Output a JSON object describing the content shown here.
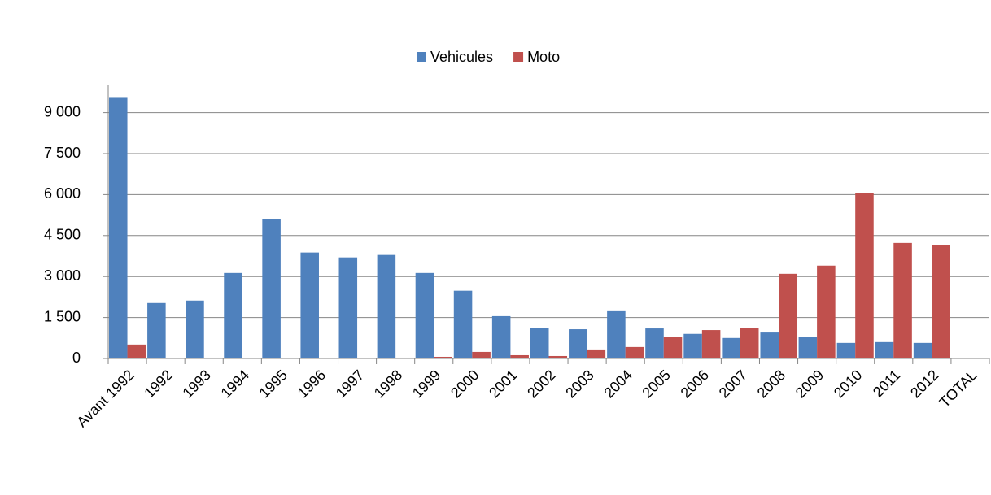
{
  "chart_data": {
    "type": "bar",
    "categories": [
      "Avant 1992",
      "1992",
      "1993",
      "1994",
      "1995",
      "1996",
      "1997",
      "1998",
      "1999",
      "2000",
      "2001",
      "2002",
      "2003",
      "2004",
      "2005",
      "2006",
      "2007",
      "2008",
      "2009",
      "2010",
      "2011",
      "2012",
      "TOTAL"
    ],
    "series": [
      {
        "name": "Vehicules",
        "color": "#4f81bd",
        "values": [
          9570,
          2030,
          2120,
          3130,
          5100,
          3880,
          3700,
          3790,
          3130,
          2480,
          1550,
          1130,
          1070,
          1730,
          1100,
          900,
          750,
          950,
          780,
          570,
          600,
          570,
          null
        ]
      },
      {
        "name": "Moto",
        "color": "#c0504d",
        "values": [
          510,
          0,
          30,
          0,
          0,
          0,
          0,
          30,
          60,
          240,
          120,
          90,
          330,
          420,
          800,
          1040,
          1130,
          3100,
          3400,
          6050,
          4230,
          4150,
          null
        ]
      }
    ],
    "ylim": [
      0,
      10000
    ],
    "yticks": [
      0,
      {
        "value": 1500,
        "label": "1 500"
      },
      {
        "value": 3000,
        "label": "3 000"
      },
      {
        "value": 4500,
        "label": "4 500"
      },
      {
        "value": 6000,
        "label": "6 000"
      },
      {
        "value": 7500,
        "label": "7 500"
      },
      {
        "value": 9000,
        "label": "9 000"
      }
    ],
    "grid": true,
    "legend": "top"
  }
}
